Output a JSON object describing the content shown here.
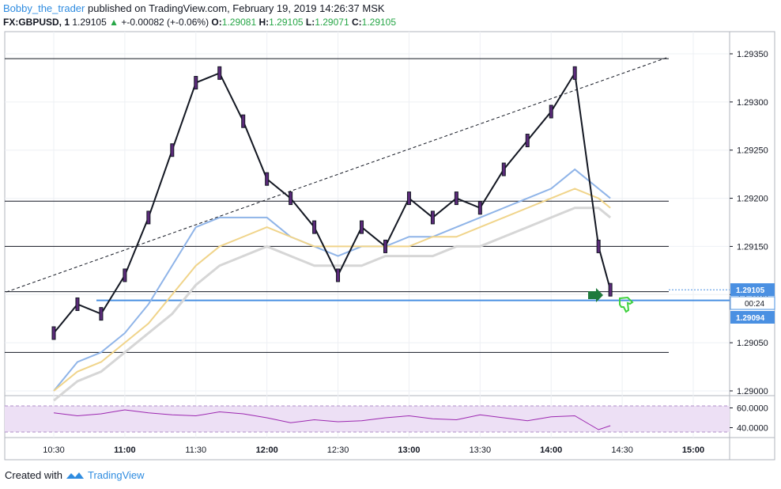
{
  "header": {
    "username": "Bobby_the_trader",
    "published": "published on TradingView.com, February 19, 2019 14:26:37 MSK",
    "symbol": "FX:GBPUSD, 1",
    "last": "1.29105",
    "change": "+-0.00082 (+-0.06%)",
    "open_label": "O:",
    "open": "1.29081",
    "high_label": "H:",
    "high": "1.29105",
    "low_label": "L:",
    "low": "1.29071",
    "close_label": "C:",
    "close": "1.29105"
  },
  "price_axis": {
    "labels": [
      "1.29350",
      "1.29300",
      "1.29250",
      "1.29200",
      "1.29150",
      "1.29100",
      "1.29050",
      "1.29000"
    ]
  },
  "rsi_axis": {
    "labels": [
      "60.0000",
      "40.0000"
    ]
  },
  "time_axis": {
    "labels": [
      "10:30",
      "11:00",
      "11:30",
      "12:00",
      "12:30",
      "13:00",
      "13:30",
      "14:00",
      "14:30",
      "15:00"
    ]
  },
  "tags": {
    "price": "1.29105",
    "countdown": "00:24",
    "line": "1.29094"
  },
  "footer": {
    "created_with": "Created with",
    "brand": "TradingView"
  },
  "colors": {
    "up": "#26a646",
    "accent": "#2f8ce0",
    "line": "#4a90e2",
    "rsi": "#9c27b0",
    "rsi_band": "#ede0f5"
  },
  "chart_data": {
    "type": "line",
    "title": "FX:GBPUSD, 1",
    "xlabel": "",
    "ylabel": "",
    "ylim": [
      1.29,
      1.2937
    ],
    "x": [
      "10:30",
      "10:40",
      "10:50",
      "11:00",
      "11:10",
      "11:20",
      "11:30",
      "11:40",
      "11:50",
      "12:00",
      "12:10",
      "12:20",
      "12:30",
      "12:40",
      "12:50",
      "13:00",
      "13:10",
      "13:20",
      "13:30",
      "13:40",
      "13:50",
      "14:00",
      "14:10",
      "14:20",
      "14:25"
    ],
    "series": [
      {
        "values": [
          1.2906,
          1.2909,
          1.2908,
          1.2912,
          1.2918,
          1.2925,
          1.2932,
          1.2933,
          1.2928,
          1.2922,
          1.292,
          1.2917,
          1.2912,
          1.2917,
          1.2915,
          1.292,
          1.2918,
          1.292,
          1.2919,
          1.2923,
          1.2926,
          1.2929,
          1.2933,
          1.2915,
          1.29105
        ]
      },
      {
        "values": [
          1.29,
          1.2903,
          1.2904,
          1.2906,
          1.2909,
          1.2913,
          1.2917,
          1.2918,
          1.2918,
          1.2918,
          1.2916,
          1.2915,
          1.2914,
          1.2915,
          1.2915,
          1.2916,
          1.2916,
          1.2917,
          1.2918,
          1.2919,
          1.292,
          1.2921,
          1.2923,
          1.2921,
          1.292
        ]
      },
      {
        "values": [
          1.29,
          1.2902,
          1.2903,
          1.2905,
          1.2907,
          1.291,
          1.2913,
          1.2915,
          1.2916,
          1.2917,
          1.2916,
          1.2915,
          1.2915,
          1.2915,
          1.2915,
          1.2915,
          1.2916,
          1.2916,
          1.2917,
          1.2918,
          1.2919,
          1.292,
          1.2921,
          1.292,
          1.2919
        ]
      },
      {
        "values": [
          1.2899,
          1.2901,
          1.2902,
          1.2904,
          1.2906,
          1.2908,
          1.2911,
          1.2913,
          1.2914,
          1.2915,
          1.2914,
          1.2913,
          1.2913,
          1.2913,
          1.2914,
          1.2914,
          1.2914,
          1.2915,
          1.2915,
          1.2916,
          1.2917,
          1.2918,
          1.2919,
          1.2919,
          1.2918
        ]
      }
    ],
    "horizontal_levels": [
      1.29345,
      1.29197,
      1.2915,
      1.29103,
      1.2904,
      1.29094
    ],
    "rsi": {
      "ylim": [
        30,
        70
      ],
      "band": [
        40,
        60
      ],
      "values": [
        55,
        52,
        54,
        58,
        55,
        53,
        52,
        56,
        54,
        50,
        45,
        48,
        46,
        47,
        50,
        52,
        49,
        48,
        53,
        50,
        47,
        51,
        52,
        38,
        42
      ]
    }
  }
}
